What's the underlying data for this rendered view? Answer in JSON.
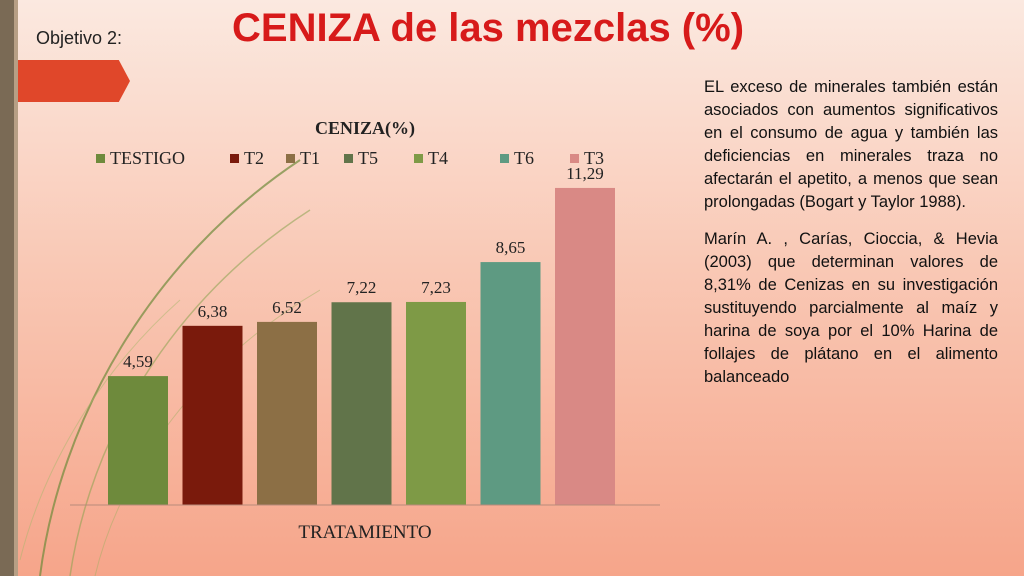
{
  "header": {
    "objective": "Objetivo 2:",
    "title": "CENIZA de las mezclas (%)"
  },
  "side_text": {
    "paragraph1": "EL exceso de minerales también están asociados con aumentos significativos en el consumo de agua y también las deficiencias en minerales traza no afectarán el apetito, a menos que sean prolongadas (Bogart y Taylor 1988).",
    "paragraph2": "Marín A. , Carías, Cioccia, & Hevia (2003) que determinan valores de 8,31% de Cenizas en su investigación sustituyendo parcialmente al maíz y harina de soya por el 10% Harina de follajes de plátano en el alimento balanceado"
  },
  "colors": {
    "TESTIGO": "#6e8a3c",
    "T2": "#7a1a0c",
    "T1": "#8c6f45",
    "T5": "#61744a",
    "T4": "#7e9a46",
    "T6": "#5e9a82",
    "T3": "#d98985"
  },
  "chart_data": {
    "type": "bar",
    "title": "CENIZA(%)",
    "xlabel": "TRATAMIENTO",
    "ylabel": "",
    "ylim": [
      0,
      12
    ],
    "grid": false,
    "legend_position": "top",
    "categories": [
      "TESTIGO",
      "T2",
      "T1",
      "T5",
      "T4",
      "T6",
      "T3"
    ],
    "values": [
      4.59,
      6.38,
      6.52,
      7.22,
      7.23,
      8.65,
      11.29
    ],
    "value_labels": [
      "4,59",
      "6,38",
      "6,52",
      "7,22",
      "7,23",
      "8,65",
      "11,29"
    ]
  }
}
